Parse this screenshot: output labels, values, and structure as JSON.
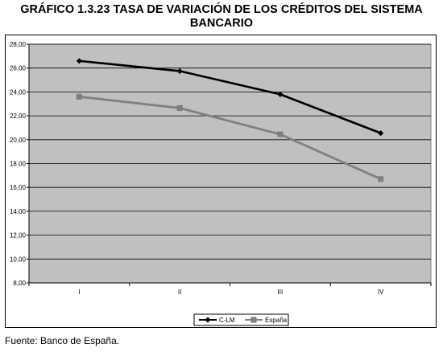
{
  "title_line1": "GRÁFICO 1.3.23 TASA DE VARIACIÓN DE LOS CRÉDITOS DEL SISTEMA",
  "title_line2": "BANCARIO",
  "source": "Fuente: Banco de España.",
  "chart_data": {
    "type": "line",
    "categories": [
      "I",
      "II",
      "III",
      "IV"
    ],
    "series": [
      {
        "name": "C-LM",
        "values": [
          26.6,
          25.75,
          23.8,
          20.55
        ],
        "color": "#000000",
        "marker": "diamond"
      },
      {
        "name": "España",
        "values": [
          23.6,
          22.65,
          20.45,
          16.7
        ],
        "color": "#808080",
        "marker": "square"
      }
    ],
    "ylim": [
      8,
      28
    ],
    "yticks": [
      "8,00",
      "10,00",
      "12,00",
      "14,00",
      "16,00",
      "18,00",
      "20,00",
      "22,00",
      "24,00",
      "26,00",
      "28,00"
    ],
    "grid": true,
    "plot_background": "#c0c0c0",
    "legend_position": "bottom-center"
  }
}
